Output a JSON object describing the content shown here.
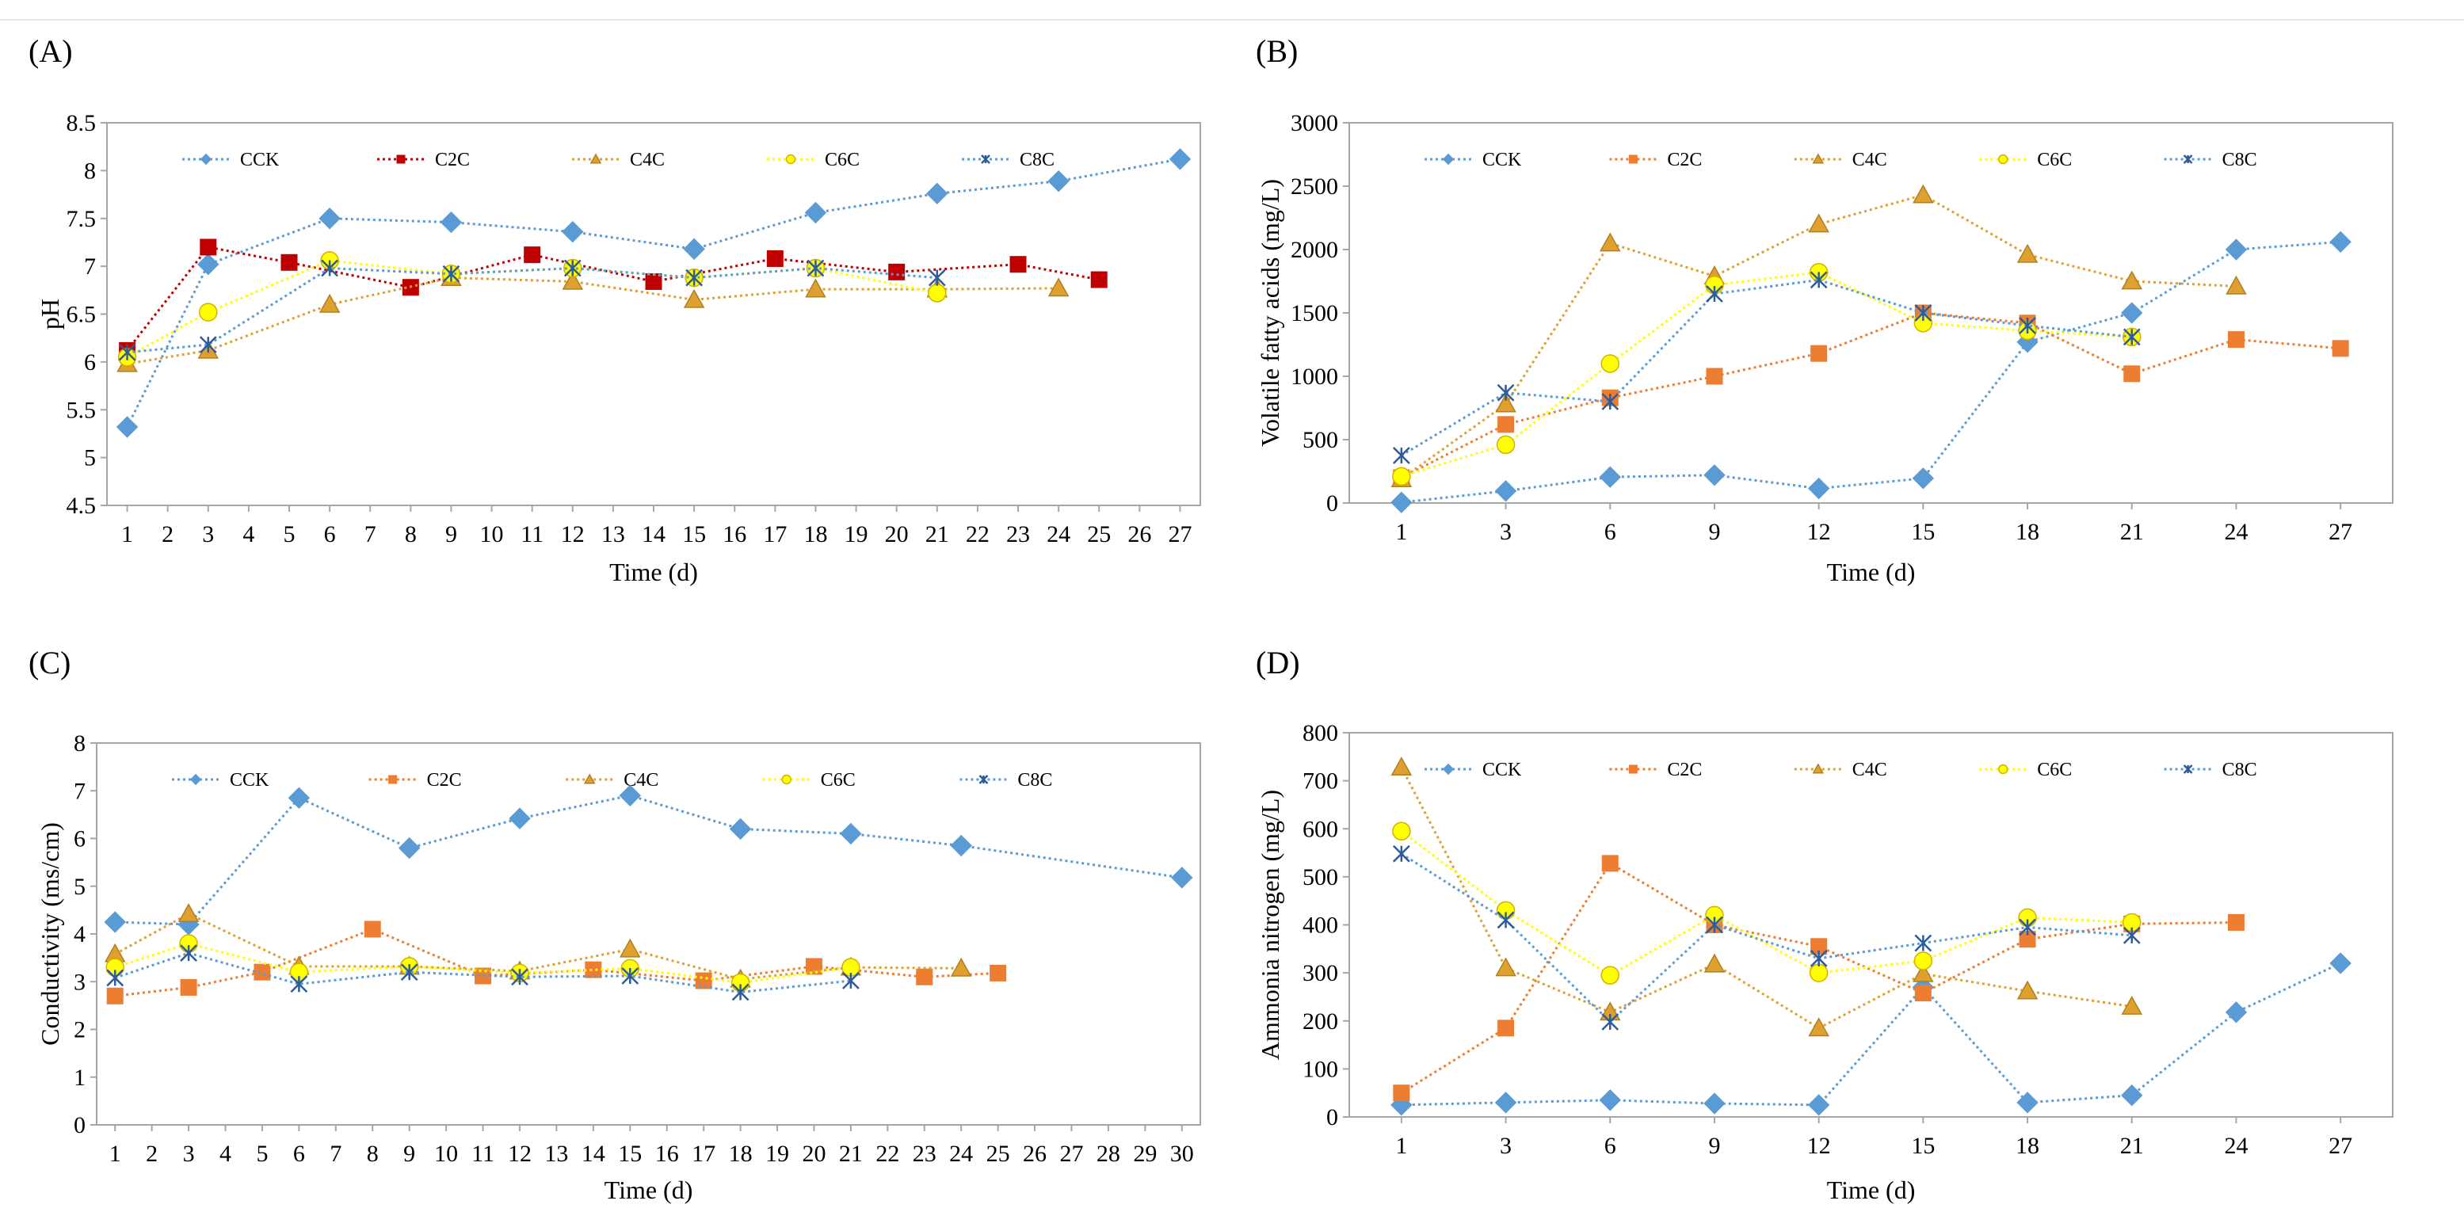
{
  "figure": {
    "panels": [
      "A",
      "B",
      "C",
      "D"
    ]
  },
  "chart_data": [
    {
      "id": "A",
      "panel_label": "(A)",
      "type": "line",
      "title": "",
      "xlabel": "Time (d)",
      "ylabel": "pH",
      "ylim": [
        4.5,
        8.5
      ],
      "yticks": [
        "4.5",
        "5",
        "5.5",
        "6",
        "6.5",
        "7",
        "7.5",
        "8",
        "8.5"
      ],
      "xticks": [
        "1",
        "2",
        "3",
        "4",
        "5",
        "6",
        "7",
        "8",
        "9",
        "10",
        "11",
        "12",
        "13",
        "14",
        "15",
        "16",
        "17",
        "18",
        "19",
        "20",
        "21",
        "22",
        "23",
        "24",
        "25",
        "26",
        "27"
      ],
      "legend": "top",
      "series": [
        {
          "name": "CCK",
          "color": "#5b9bd5",
          "marker": "diamond",
          "x": [
            1,
            3,
            6,
            9,
            12,
            15,
            18,
            21,
            24,
            27
          ],
          "y": [
            5.32,
            7.02,
            7.5,
            7.46,
            7.36,
            7.18,
            7.56,
            7.76,
            7.89,
            8.12
          ]
        },
        {
          "name": "C2C",
          "color": "#c00000",
          "marker": "square",
          "x": [
            1,
            3,
            5,
            8,
            11,
            14,
            17,
            20,
            23,
            25
          ],
          "y": [
            6.12,
            7.2,
            7.04,
            6.78,
            7.12,
            6.84,
            7.08,
            6.94,
            7.02,
            6.86
          ]
        },
        {
          "name": "C4C",
          "color": "#e0a030",
          "marker": "triangle",
          "x": [
            1,
            3,
            6,
            9,
            12,
            15,
            18,
            21,
            24
          ],
          "y": [
            5.98,
            6.12,
            6.6,
            6.88,
            6.84,
            6.65,
            6.76,
            6.76,
            6.77
          ]
        },
        {
          "name": "C6C",
          "color": "#ffff00",
          "marker": "circle",
          "x": [
            1,
            3,
            6,
            9,
            12,
            15,
            18,
            21
          ],
          "y": [
            6.05,
            6.52,
            7.06,
            6.92,
            6.98,
            6.88,
            6.98,
            6.72
          ]
        },
        {
          "name": "C8C",
          "color": "#5b9bd5",
          "marker": "star",
          "x": [
            1,
            3,
            6,
            9,
            12,
            15,
            18,
            21
          ],
          "y": [
            6.1,
            6.18,
            6.98,
            6.92,
            6.98,
            6.88,
            6.98,
            6.88
          ]
        }
      ]
    },
    {
      "id": "B",
      "panel_label": "(B)",
      "type": "line",
      "title": "",
      "xlabel": "Time (d)",
      "ylabel": "Volatile fatty acids (mg/L)",
      "ylim": [
        0,
        3000
      ],
      "yticks": [
        "0",
        "500",
        "1000",
        "1500",
        "2000",
        "2500",
        "3000"
      ],
      "xticks": [
        "1",
        "3",
        "6",
        "9",
        "12",
        "15",
        "18",
        "21",
        "24",
        "27"
      ],
      "legend": "top",
      "series": [
        {
          "name": "CCK",
          "color": "#5b9bd5",
          "marker": "diamond",
          "x": [
            1,
            3,
            6,
            9,
            12,
            15,
            18,
            21,
            24,
            27
          ],
          "y": [
            5,
            95,
            205,
            220,
            115,
            195,
            1270,
            1500,
            2000,
            2060
          ]
        },
        {
          "name": "C2C",
          "color": "#ed7d31",
          "marker": "square",
          "x": [
            1,
            3,
            6,
            9,
            12,
            15,
            18,
            21,
            24,
            27
          ],
          "y": [
            200,
            620,
            830,
            1000,
            1180,
            1500,
            1420,
            1020,
            1290,
            1220
          ]
        },
        {
          "name": "C4C",
          "color": "#e0a030",
          "marker": "triangle",
          "x": [
            1,
            3,
            6,
            9,
            12,
            15,
            18,
            21,
            24
          ],
          "y": [
            190,
            780,
            2050,
            1790,
            2200,
            2430,
            1960,
            1750,
            1710
          ]
        },
        {
          "name": "C6C",
          "color": "#ffff00",
          "marker": "circle",
          "x": [
            1,
            3,
            6,
            9,
            12,
            15,
            18,
            21
          ],
          "y": [
            210,
            460,
            1100,
            1720,
            1820,
            1420,
            1360,
            1310
          ]
        },
        {
          "name": "C8C",
          "color": "#5b9bd5",
          "marker": "star",
          "x": [
            1,
            3,
            6,
            9,
            12,
            15,
            18,
            21
          ],
          "y": [
            375,
            870,
            800,
            1650,
            1760,
            1500,
            1400,
            1310
          ]
        }
      ]
    },
    {
      "id": "C",
      "panel_label": "(C)",
      "type": "line",
      "title": "",
      "xlabel": "Time (d)",
      "ylabel": "Conductivity (ms/cm)",
      "ylim": [
        0,
        8
      ],
      "yticks": [
        "0",
        "1",
        "2",
        "3",
        "4",
        "5",
        "6",
        "7",
        "8"
      ],
      "xticks": [
        "1",
        "2",
        "3",
        "4",
        "5",
        "6",
        "7",
        "8",
        "9",
        "10",
        "11",
        "12",
        "13",
        "14",
        "15",
        "16",
        "17",
        "18",
        "19",
        "20",
        "21",
        "22",
        "23",
        "24",
        "25",
        "26",
        "27",
        "28",
        "29",
        "30"
      ],
      "legend": "top",
      "series": [
        {
          "name": "CCK",
          "color": "#5b9bd5",
          "marker": "diamond",
          "x": [
            1,
            3,
            6,
            9,
            12,
            15,
            18,
            21,
            24,
            30
          ],
          "y": [
            4.25,
            4.2,
            6.85,
            5.8,
            6.42,
            6.9,
            6.2,
            6.1,
            5.85,
            5.18
          ]
        },
        {
          "name": "C2C",
          "color": "#ed7d31",
          "marker": "square",
          "x": [
            1,
            3,
            5,
            8,
            11,
            14,
            17,
            20,
            23,
            25
          ],
          "y": [
            2.7,
            2.88,
            3.2,
            4.1,
            3.12,
            3.25,
            3.02,
            3.32,
            3.1,
            3.18
          ]
        },
        {
          "name": "C4C",
          "color": "#e0a030",
          "marker": "triangle",
          "x": [
            1,
            3,
            6,
            9,
            12,
            15,
            18,
            21,
            24
          ],
          "y": [
            3.58,
            4.42,
            3.32,
            3.32,
            3.22,
            3.68,
            3.05,
            3.3,
            3.28
          ]
        },
        {
          "name": "C6C",
          "color": "#ffff00",
          "marker": "circle",
          "x": [
            1,
            3,
            6,
            9,
            12,
            15,
            18,
            21
          ],
          "y": [
            3.3,
            3.8,
            3.2,
            3.32,
            3.18,
            3.28,
            2.98,
            3.3
          ]
        },
        {
          "name": "C8C",
          "color": "#5b9bd5",
          "marker": "star",
          "x": [
            1,
            3,
            6,
            9,
            12,
            15,
            18,
            21
          ],
          "y": [
            3.08,
            3.6,
            2.95,
            3.2,
            3.1,
            3.12,
            2.78,
            3.02
          ]
        }
      ]
    },
    {
      "id": "D",
      "panel_label": "(D)",
      "type": "line",
      "title": "",
      "xlabel": "Time (d)",
      "ylabel": "Ammonia nitrogen (mg/L)",
      "ylim": [
        0,
        800
      ],
      "yticks": [
        "0",
        "100",
        "200",
        "300",
        "400",
        "500",
        "600",
        "700",
        "800"
      ],
      "xticks": [
        "1",
        "3",
        "6",
        "9",
        "12",
        "15",
        "18",
        "21",
        "24",
        "27"
      ],
      "legend": "top",
      "series": [
        {
          "name": "CCK",
          "color": "#5b9bd5",
          "marker": "diamond",
          "x": [
            1,
            3,
            6,
            9,
            12,
            15,
            18,
            21,
            24,
            27
          ],
          "y": [
            25,
            30,
            35,
            28,
            25,
            270,
            30,
            45,
            218,
            320
          ]
        },
        {
          "name": "C2C",
          "color": "#ed7d31",
          "marker": "square",
          "x": [
            1,
            3,
            6,
            9,
            12,
            15,
            18,
            21,
            24
          ],
          "y": [
            50,
            185,
            528,
            400,
            355,
            258,
            370,
            402,
            405
          ]
        },
        {
          "name": "C4C",
          "color": "#e0a030",
          "marker": "triangle",
          "x": [
            1,
            3,
            6,
            9,
            12,
            15,
            18,
            21
          ],
          "y": [
            728,
            310,
            218,
            318,
            185,
            298,
            262,
            230
          ]
        },
        {
          "name": "C6C",
          "color": "#ffff00",
          "marker": "circle",
          "x": [
            1,
            3,
            6,
            9,
            12,
            15,
            18,
            21
          ],
          "y": [
            595,
            430,
            295,
            420,
            300,
            325,
            415,
            405
          ]
        },
        {
          "name": "C8C",
          "color": "#5b9bd5",
          "marker": "star",
          "x": [
            1,
            3,
            6,
            9,
            12,
            15,
            18,
            21
          ],
          "y": [
            548,
            410,
            198,
            400,
            330,
            362,
            395,
            378
          ]
        }
      ]
    }
  ]
}
